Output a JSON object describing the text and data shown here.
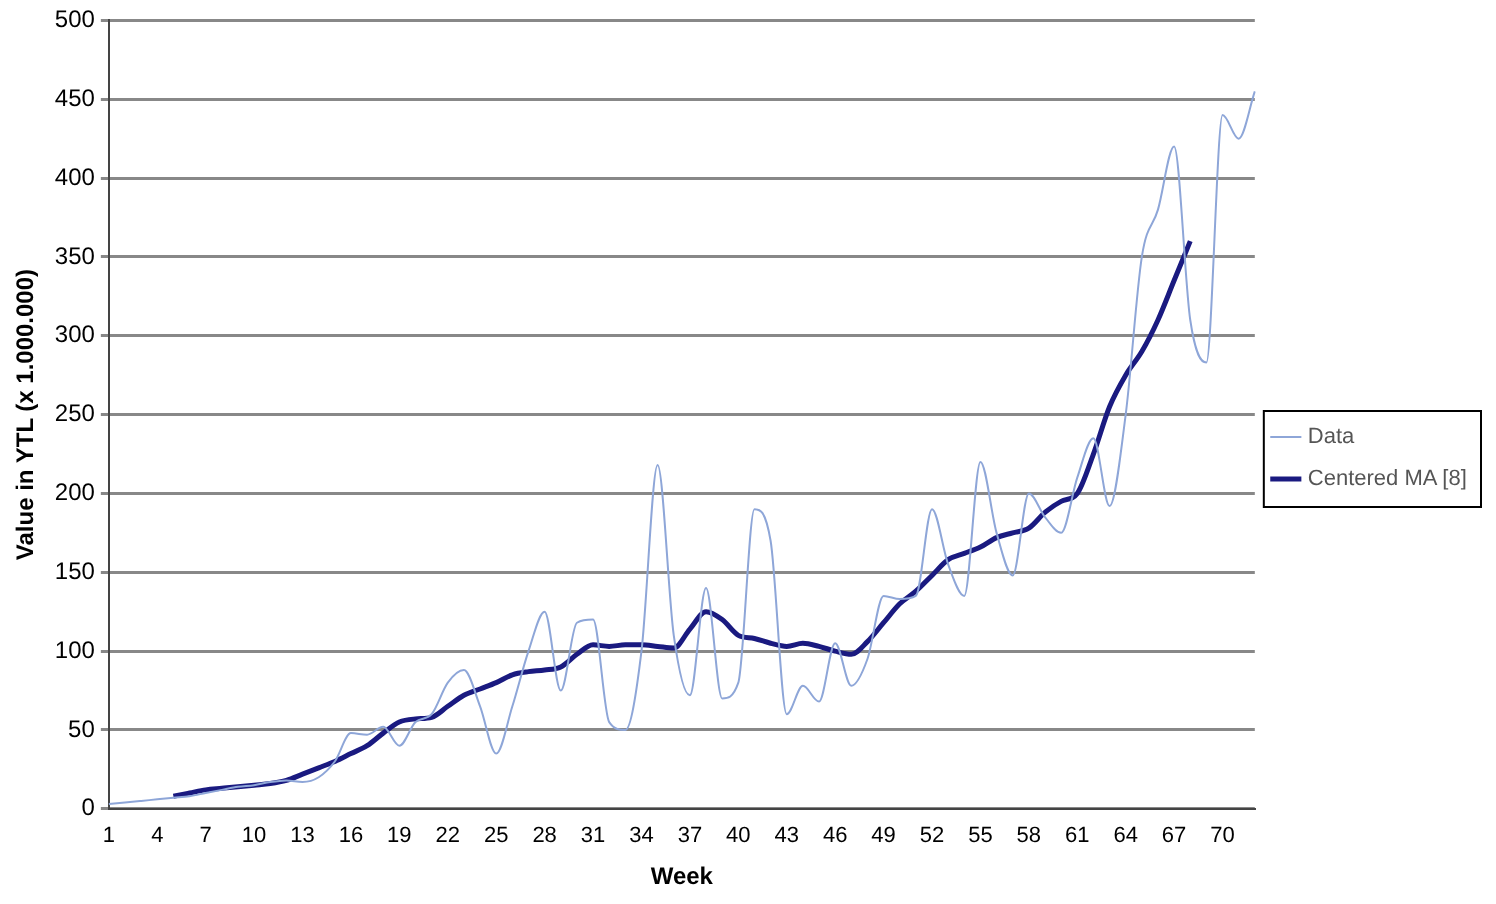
{
  "chart_data": {
    "type": "line",
    "xlabel": "Week",
    "ylabel": "Value in YTL (x 1.000.000)",
    "categories": [
      "1",
      null,
      null,
      "4",
      null,
      null,
      "7",
      null,
      null,
      "10",
      null,
      null,
      "13",
      null,
      null,
      "16",
      null,
      null,
      "19",
      null,
      null,
      "22",
      null,
      null,
      "25",
      null,
      null,
      "28",
      null,
      null,
      "31",
      null,
      null,
      "34",
      null,
      null,
      "37",
      null,
      null,
      "40",
      null,
      null,
      "43",
      null,
      null,
      "46",
      null,
      null,
      "49",
      null,
      null,
      "52",
      null,
      null,
      "55",
      null,
      null,
      "58",
      null,
      null,
      "61",
      null,
      null,
      "64",
      null,
      null,
      "67",
      null,
      null,
      "70",
      null,
      null
    ],
    "series": [
      {
        "name": "Data",
        "color": "#8ea6d8",
        "values": [
          3,
          4,
          5,
          6,
          7,
          8,
          10,
          12,
          14,
          15,
          17,
          18,
          17,
          20,
          30,
          48,
          47,
          52,
          40,
          55,
          60,
          80,
          88,
          65,
          35,
          65,
          100,
          125,
          75,
          118,
          120,
          55,
          50,
          100,
          218,
          110,
          72,
          140,
          70,
          80,
          190,
          170,
          60,
          78,
          68,
          105,
          78,
          95,
          135,
          133,
          135,
          190,
          155,
          135,
          220,
          175,
          148,
          200,
          185,
          175,
          210,
          235,
          192,
          250,
          350,
          380,
          420,
          310,
          283,
          440,
          425,
          455
        ]
      },
      {
        "name": "Centered MA [8]",
        "color": "#1a1a80",
        "values": [
          null,
          null,
          null,
          null,
          8,
          10,
          12,
          13,
          14,
          15,
          16,
          18,
          22,
          26,
          30,
          35,
          40,
          48,
          55,
          57,
          58,
          65,
          72,
          76,
          80,
          85,
          87,
          88,
          90,
          98,
          104,
          103,
          104,
          104,
          103,
          102,
          114,
          125,
          120,
          110,
          108,
          105,
          103,
          105,
          103,
          100,
          98,
          106,
          118,
          130,
          138,
          148,
          158,
          162,
          166,
          172,
          175,
          178,
          188,
          195,
          200,
          225,
          255,
          275,
          290,
          310,
          335,
          360,
          null,
          null,
          null,
          null
        ]
      }
    ],
    "ylim": [
      0,
      500
    ],
    "yticks": [
      0,
      50,
      100,
      150,
      200,
      250,
      300,
      350,
      400,
      450,
      500
    ],
    "grid": "y",
    "legend": "right",
    "marker": "none"
  }
}
